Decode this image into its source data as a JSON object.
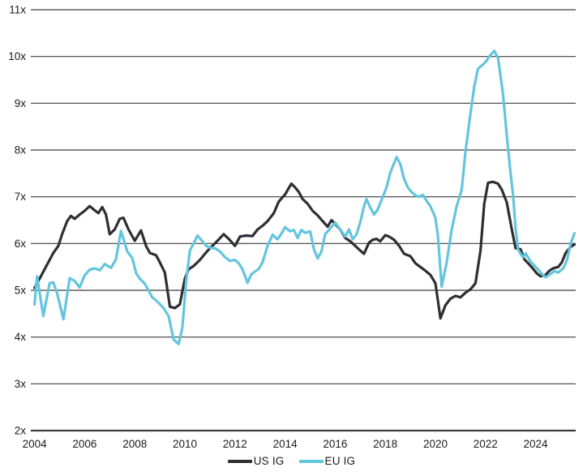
{
  "chart_data": {
    "type": "line",
    "title": "",
    "xlabel": "",
    "ylabel": "",
    "grid": "horizontal-only",
    "legend_position": "bottom-center",
    "colors": {
      "background": "#ffffff",
      "gridline": "#3d3d3d",
      "axis_text": "#1a1a1a"
    },
    "x_axis": {
      "min": 2003.85,
      "max": 2025.6,
      "ticks": [
        {
          "value": 2004,
          "label": "2004"
        },
        {
          "value": 2006,
          "label": "2006"
        },
        {
          "value": 2008,
          "label": "2008"
        },
        {
          "value": 2010,
          "label": "2010"
        },
        {
          "value": 2012,
          "label": "2012"
        },
        {
          "value": 2014,
          "label": "2014"
        },
        {
          "value": 2016,
          "label": "2016"
        },
        {
          "value": 2018,
          "label": "2018"
        },
        {
          "value": 2020,
          "label": "2020"
        },
        {
          "value": 2022,
          "label": "2022"
        },
        {
          "value": 2024,
          "label": "2024"
        }
      ]
    },
    "y_axis": {
      "min": 2,
      "max": 11,
      "ticks": [
        {
          "value": 2,
          "label": "2x"
        },
        {
          "value": 3,
          "label": "3x"
        },
        {
          "value": 4,
          "label": "4x"
        },
        {
          "value": 5,
          "label": "5x"
        },
        {
          "value": 6,
          "label": "6x"
        },
        {
          "value": 7,
          "label": "7x"
        },
        {
          "value": 8,
          "label": "8x"
        },
        {
          "value": 9,
          "label": "9x"
        },
        {
          "value": 10,
          "label": "10x"
        },
        {
          "value": 11,
          "label": "11x"
        }
      ]
    },
    "series": [
      {
        "name": "US IG",
        "color": "#2e2e33",
        "stroke_width": 3.2,
        "points": [
          [
            2004.0,
            5.05
          ],
          [
            2004.25,
            5.3
          ],
          [
            2004.5,
            5.55
          ],
          [
            2004.75,
            5.8
          ],
          [
            2004.95,
            5.95
          ],
          [
            2005.1,
            6.2
          ],
          [
            2005.3,
            6.48
          ],
          [
            2005.45,
            6.59
          ],
          [
            2005.6,
            6.53
          ],
          [
            2005.8,
            6.62
          ],
          [
            2006.0,
            6.7
          ],
          [
            2006.2,
            6.8
          ],
          [
            2006.4,
            6.71
          ],
          [
            2006.55,
            6.65
          ],
          [
            2006.7,
            6.78
          ],
          [
            2006.85,
            6.62
          ],
          [
            2007.0,
            6.2
          ],
          [
            2007.2,
            6.3
          ],
          [
            2007.4,
            6.53
          ],
          [
            2007.55,
            6.55
          ],
          [
            2007.75,
            6.3
          ],
          [
            2008.0,
            6.06
          ],
          [
            2008.25,
            6.28
          ],
          [
            2008.45,
            5.95
          ],
          [
            2008.6,
            5.8
          ],
          [
            2008.85,
            5.75
          ],
          [
            2009.0,
            5.6
          ],
          [
            2009.2,
            5.38
          ],
          [
            2009.4,
            4.65
          ],
          [
            2009.6,
            4.62
          ],
          [
            2009.8,
            4.7
          ],
          [
            2010.0,
            5.25
          ],
          [
            2010.15,
            5.45
          ],
          [
            2010.35,
            5.52
          ],
          [
            2010.6,
            5.65
          ],
          [
            2010.8,
            5.78
          ],
          [
            2011.0,
            5.9
          ],
          [
            2011.25,
            6.03
          ],
          [
            2011.55,
            6.2
          ],
          [
            2011.75,
            6.1
          ],
          [
            2012.0,
            5.95
          ],
          [
            2012.2,
            6.15
          ],
          [
            2012.45,
            6.17
          ],
          [
            2012.7,
            6.16
          ],
          [
            2012.9,
            6.3
          ],
          [
            2013.1,
            6.38
          ],
          [
            2013.3,
            6.48
          ],
          [
            2013.55,
            6.65
          ],
          [
            2013.75,
            6.9
          ],
          [
            2014.0,
            7.05
          ],
          [
            2014.25,
            7.28
          ],
          [
            2014.4,
            7.2
          ],
          [
            2014.55,
            7.1
          ],
          [
            2014.7,
            6.95
          ],
          [
            2014.9,
            6.85
          ],
          [
            2015.1,
            6.7
          ],
          [
            2015.3,
            6.6
          ],
          [
            2015.5,
            6.48
          ],
          [
            2015.7,
            6.36
          ],
          [
            2015.85,
            6.5
          ],
          [
            2016.0,
            6.42
          ],
          [
            2016.2,
            6.3
          ],
          [
            2016.4,
            6.12
          ],
          [
            2016.6,
            6.05
          ],
          [
            2016.8,
            5.95
          ],
          [
            2017.0,
            5.85
          ],
          [
            2017.15,
            5.78
          ],
          [
            2017.35,
            6.02
          ],
          [
            2017.5,
            6.08
          ],
          [
            2017.65,
            6.1
          ],
          [
            2017.8,
            6.05
          ],
          [
            2018.0,
            6.18
          ],
          [
            2018.15,
            6.15
          ],
          [
            2018.35,
            6.08
          ],
          [
            2018.55,
            5.95
          ],
          [
            2018.75,
            5.78
          ],
          [
            2019.0,
            5.73
          ],
          [
            2019.2,
            5.58
          ],
          [
            2019.4,
            5.5
          ],
          [
            2019.6,
            5.42
          ],
          [
            2019.8,
            5.33
          ],
          [
            2020.0,
            5.15
          ],
          [
            2020.2,
            4.4
          ],
          [
            2020.4,
            4.68
          ],
          [
            2020.6,
            4.82
          ],
          [
            2020.8,
            4.88
          ],
          [
            2021.0,
            4.85
          ],
          [
            2021.2,
            4.95
          ],
          [
            2021.4,
            5.02
          ],
          [
            2021.6,
            5.15
          ],
          [
            2021.8,
            5.85
          ],
          [
            2021.95,
            6.85
          ],
          [
            2022.1,
            7.3
          ],
          [
            2022.3,
            7.32
          ],
          [
            2022.5,
            7.28
          ],
          [
            2022.65,
            7.15
          ],
          [
            2022.85,
            6.88
          ],
          [
            2023.05,
            6.3
          ],
          [
            2023.2,
            5.9
          ],
          [
            2023.4,
            5.88
          ],
          [
            2023.55,
            5.66
          ],
          [
            2023.7,
            5.58
          ],
          [
            2023.9,
            5.46
          ],
          [
            2024.05,
            5.36
          ],
          [
            2024.2,
            5.3
          ],
          [
            2024.4,
            5.33
          ],
          [
            2024.55,
            5.42
          ],
          [
            2024.7,
            5.47
          ],
          [
            2024.9,
            5.5
          ],
          [
            2025.05,
            5.6
          ],
          [
            2025.2,
            5.8
          ],
          [
            2025.4,
            5.93
          ],
          [
            2025.55,
            5.98
          ]
        ]
      },
      {
        "name": "EU IG",
        "color": "#63c5de",
        "stroke_width": 3.2,
        "points": [
          [
            2004.0,
            4.7
          ],
          [
            2004.1,
            5.3
          ],
          [
            2004.35,
            4.45
          ],
          [
            2004.6,
            5.15
          ],
          [
            2004.75,
            5.17
          ],
          [
            2004.9,
            4.94
          ],
          [
            2005.15,
            4.38
          ],
          [
            2005.4,
            5.26
          ],
          [
            2005.6,
            5.2
          ],
          [
            2005.8,
            5.06
          ],
          [
            2006.0,
            5.32
          ],
          [
            2006.2,
            5.44
          ],
          [
            2006.4,
            5.47
          ],
          [
            2006.6,
            5.43
          ],
          [
            2006.8,
            5.56
          ],
          [
            2007.05,
            5.48
          ],
          [
            2007.25,
            5.66
          ],
          [
            2007.45,
            6.27
          ],
          [
            2007.7,
            5.83
          ],
          [
            2007.9,
            5.69
          ],
          [
            2008.05,
            5.37
          ],
          [
            2008.2,
            5.25
          ],
          [
            2008.4,
            5.14
          ],
          [
            2008.7,
            4.85
          ],
          [
            2008.9,
            4.76
          ],
          [
            2009.15,
            4.62
          ],
          [
            2009.35,
            4.45
          ],
          [
            2009.55,
            3.95
          ],
          [
            2009.75,
            3.85
          ],
          [
            2009.9,
            4.2
          ],
          [
            2010.05,
            5.2
          ],
          [
            2010.2,
            5.85
          ],
          [
            2010.35,
            6.0
          ],
          [
            2010.5,
            6.17
          ],
          [
            2010.7,
            6.05
          ],
          [
            2010.85,
            5.95
          ],
          [
            2011.0,
            5.91
          ],
          [
            2011.2,
            5.9
          ],
          [
            2011.4,
            5.83
          ],
          [
            2011.6,
            5.71
          ],
          [
            2011.8,
            5.63
          ],
          [
            2012.0,
            5.65
          ],
          [
            2012.15,
            5.58
          ],
          [
            2012.3,
            5.45
          ],
          [
            2012.5,
            5.16
          ],
          [
            2012.65,
            5.34
          ],
          [
            2012.8,
            5.4
          ],
          [
            2012.95,
            5.46
          ],
          [
            2013.1,
            5.6
          ],
          [
            2013.3,
            5.95
          ],
          [
            2013.5,
            6.19
          ],
          [
            2013.7,
            6.09
          ],
          [
            2013.85,
            6.21
          ],
          [
            2014.0,
            6.35
          ],
          [
            2014.2,
            6.26
          ],
          [
            2014.35,
            6.29
          ],
          [
            2014.5,
            6.12
          ],
          [
            2014.65,
            6.29
          ],
          [
            2014.8,
            6.23
          ],
          [
            2015.0,
            6.26
          ],
          [
            2015.15,
            5.88
          ],
          [
            2015.3,
            5.68
          ],
          [
            2015.45,
            5.83
          ],
          [
            2015.6,
            6.2
          ],
          [
            2015.8,
            6.32
          ],
          [
            2016.0,
            6.45
          ],
          [
            2016.2,
            6.3
          ],
          [
            2016.4,
            6.15
          ],
          [
            2016.55,
            6.3
          ],
          [
            2016.7,
            6.09
          ],
          [
            2016.85,
            6.2
          ],
          [
            2017.0,
            6.45
          ],
          [
            2017.15,
            6.8
          ],
          [
            2017.25,
            6.95
          ],
          [
            2017.4,
            6.77
          ],
          [
            2017.55,
            6.62
          ],
          [
            2017.7,
            6.73
          ],
          [
            2017.9,
            7.0
          ],
          [
            2018.05,
            7.2
          ],
          [
            2018.2,
            7.52
          ],
          [
            2018.45,
            7.85
          ],
          [
            2018.6,
            7.7
          ],
          [
            2018.75,
            7.38
          ],
          [
            2018.9,
            7.2
          ],
          [
            2019.05,
            7.1
          ],
          [
            2019.2,
            7.03
          ],
          [
            2019.35,
            7.0
          ],
          [
            2019.5,
            7.04
          ],
          [
            2019.65,
            6.91
          ],
          [
            2019.8,
            6.8
          ],
          [
            2020.0,
            6.55
          ],
          [
            2020.1,
            6.16
          ],
          [
            2020.25,
            5.08
          ],
          [
            2020.45,
            5.6
          ],
          [
            2020.65,
            6.3
          ],
          [
            2020.85,
            6.8
          ],
          [
            2021.05,
            7.15
          ],
          [
            2021.2,
            7.97
          ],
          [
            2021.4,
            8.78
          ],
          [
            2021.55,
            9.36
          ],
          [
            2021.7,
            9.74
          ],
          [
            2021.9,
            9.83
          ],
          [
            2022.0,
            9.88
          ],
          [
            2022.15,
            10.0
          ],
          [
            2022.35,
            10.12
          ],
          [
            2022.5,
            9.97
          ],
          [
            2022.7,
            9.19
          ],
          [
            2022.85,
            8.31
          ],
          [
            2023.0,
            7.5
          ],
          [
            2023.1,
            7.03
          ],
          [
            2023.2,
            6.34
          ],
          [
            2023.3,
            5.87
          ],
          [
            2023.5,
            5.7
          ],
          [
            2023.6,
            5.79
          ],
          [
            2023.8,
            5.61
          ],
          [
            2023.95,
            5.53
          ],
          [
            2024.1,
            5.44
          ],
          [
            2024.25,
            5.35
          ],
          [
            2024.4,
            5.28
          ],
          [
            2024.6,
            5.35
          ],
          [
            2024.75,
            5.41
          ],
          [
            2024.9,
            5.38
          ],
          [
            2025.1,
            5.47
          ],
          [
            2025.25,
            5.64
          ],
          [
            2025.4,
            6.0
          ],
          [
            2025.55,
            6.22
          ]
        ]
      }
    ]
  }
}
